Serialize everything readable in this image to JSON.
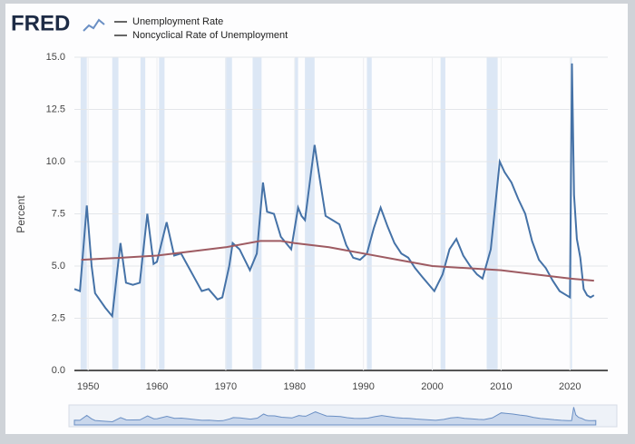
{
  "logo": "FRED",
  "chart_data": {
    "type": "line",
    "y_label": "Percent",
    "xlim": [
      1948.0,
      2025.5
    ],
    "xticks": [
      1950,
      1960,
      1970,
      1980,
      1990,
      2000,
      2010,
      2020
    ],
    "ylim": [
      0,
      15
    ],
    "yticks": [
      {
        "value": 0,
        "label": "0.0"
      },
      2.5,
      {
        "value": 5,
        "label": "5.0"
      },
      7.5,
      {
        "value": 10,
        "label": "10.0"
      },
      12.5,
      {
        "value": 15,
        "label": "15.0"
      }
    ],
    "grid": true,
    "recession_color": "#dce7f5",
    "recessions": [
      [
        1948.9,
        1949.8
      ],
      [
        1953.5,
        1954.4
      ],
      [
        1957.6,
        1958.3
      ],
      [
        1960.3,
        1961.1
      ],
      [
        1969.9,
        1970.9
      ],
      [
        1973.9,
        1975.2
      ],
      [
        1980.0,
        1980.5
      ],
      [
        1981.5,
        1982.9
      ],
      [
        1990.5,
        1991.2
      ],
      [
        2001.2,
        2001.9
      ],
      [
        2007.9,
        2009.5
      ],
      [
        2020.1,
        2020.3
      ]
    ],
    "series": [
      {
        "name": "Unemployment Rate",
        "color": "#4572a7",
        "x": [
          1948.0,
          1948.8,
          1949.8,
          1950.5,
          1951.0,
          1952.5,
          1953.5,
          1954.7,
          1955.5,
          1956.5,
          1957.5,
          1958.6,
          1959.5,
          1960.0,
          1961.4,
          1962.5,
          1963.5,
          1964.5,
          1965.5,
          1966.5,
          1967.5,
          1968.8,
          1969.5,
          1970.5,
          1971.0,
          1972.0,
          1973.5,
          1974.5,
          1975.4,
          1976.0,
          1977.0,
          1978.0,
          1979.5,
          1980.5,
          1981.0,
          1981.5,
          1982.9,
          1983.5,
          1984.5,
          1985.5,
          1986.5,
          1987.5,
          1988.5,
          1989.5,
          1990.5,
          1991.5,
          1992.5,
          1993.5,
          1994.5,
          1995.5,
          1996.5,
          1997.5,
          1998.5,
          2000.3,
          2001.5,
          2002.5,
          2003.5,
          2004.5,
          2005.5,
          2006.5,
          2007.3,
          2008.5,
          2009.8,
          2010.5,
          2011.5,
          2012.5,
          2013.5,
          2014.5,
          2015.5,
          2016.5,
          2017.5,
          2018.5,
          2019.5,
          2020.0,
          2020.3,
          2020.6,
          2021.0,
          2021.5,
          2022.0,
          2022.5,
          2023.0,
          2023.5
        ],
        "values": [
          3.9,
          3.8,
          7.9,
          5.0,
          3.7,
          3.0,
          2.6,
          6.1,
          4.2,
          4.1,
          4.2,
          7.5,
          5.1,
          5.2,
          7.1,
          5.5,
          5.6,
          5.0,
          4.4,
          3.8,
          3.9,
          3.4,
          3.5,
          5.0,
          6.1,
          5.8,
          4.8,
          5.6,
          9.0,
          7.6,
          7.5,
          6.4,
          5.8,
          7.8,
          7.4,
          7.2,
          10.8,
          9.5,
          7.4,
          7.2,
          7.0,
          6.0,
          5.4,
          5.3,
          5.6,
          6.8,
          7.8,
          6.9,
          6.1,
          5.6,
          5.4,
          4.9,
          4.5,
          3.8,
          4.6,
          5.8,
          6.3,
          5.5,
          5.0,
          4.6,
          4.4,
          5.8,
          10.0,
          9.5,
          9.0,
          8.2,
          7.5,
          6.2,
          5.3,
          4.9,
          4.3,
          3.8,
          3.6,
          3.5,
          14.7,
          8.4,
          6.3,
          5.4,
          3.9,
          3.6,
          3.5,
          3.6
        ]
      },
      {
        "name": "Noncyclical Rate of Unemployment",
        "color": "#9e5b62",
        "x": [
          1949,
          1955,
          1960,
          1965,
          1970,
          1975,
          1978,
          1980,
          1985,
          1990,
          1995,
          2000,
          2005,
          2010,
          2015,
          2020,
          2023.5
        ],
        "values": [
          5.3,
          5.4,
          5.5,
          5.7,
          5.9,
          6.2,
          6.2,
          6.1,
          5.9,
          5.6,
          5.3,
          5.0,
          4.9,
          4.8,
          4.6,
          4.4,
          4.3
        ]
      }
    ]
  }
}
